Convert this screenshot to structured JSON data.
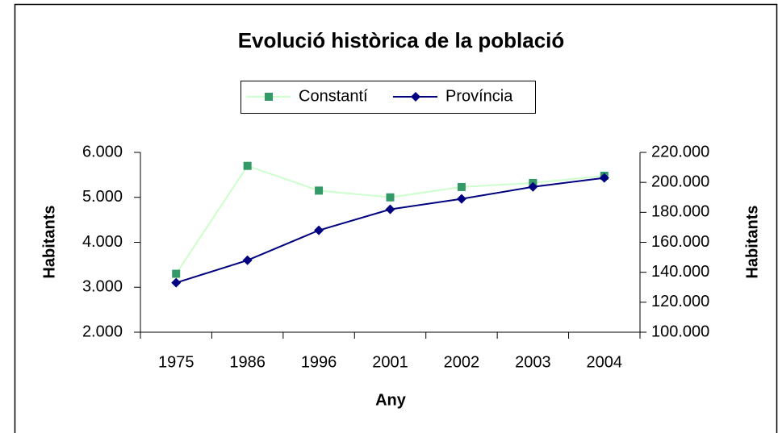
{
  "chart_data": {
    "type": "line",
    "title": "Evolució històrica de la població",
    "xlabel": "Any",
    "ylabel": "Habitants",
    "y2label": "Habitants",
    "categories": [
      "1975",
      "1986",
      "1996",
      "2001",
      "2002",
      "2003",
      "2004"
    ],
    "series": [
      {
        "name": "Constantí",
        "color": "#339966",
        "line_color": "#ccffcc",
        "marker": "square",
        "values": [
          3300,
          5700,
          5150,
          5000,
          5230,
          5320,
          5480
        ]
      },
      {
        "name": "Província",
        "color": "#000080",
        "line_color": "#000080",
        "marker": "diamond",
        "axis": "y2",
        "values": [
          133000,
          148000,
          168000,
          182000,
          189000,
          197000,
          203000
        ]
      }
    ],
    "ylim": [
      2000,
      6000
    ],
    "yticks": [
      {
        "value": 2000,
        "label": "2.000"
      },
      {
        "value": 3000,
        "label": "3.000"
      },
      {
        "value": 4000,
        "label": "4.000"
      },
      {
        "value": 5000,
        "label": "5.000"
      },
      {
        "value": 6000,
        "label": "6.000"
      }
    ],
    "y2lim": [
      100000,
      220000
    ],
    "y2ticks": [
      {
        "value": 100000,
        "label": "100.000"
      },
      {
        "value": 120000,
        "label": "120.000"
      },
      {
        "value": 140000,
        "label": "140.000"
      },
      {
        "value": 160000,
        "label": "160.000"
      },
      {
        "value": 180000,
        "label": "180.000"
      },
      {
        "value": 200000,
        "label": "200.000"
      },
      {
        "value": 220000,
        "label": "220.000"
      }
    ],
    "grid": false
  }
}
